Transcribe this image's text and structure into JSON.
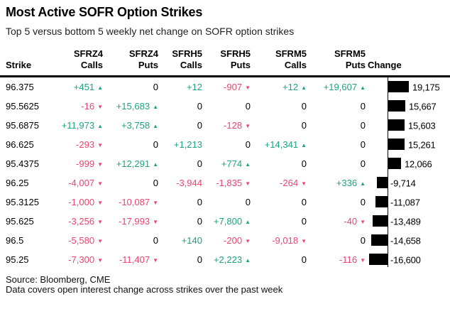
{
  "title": "Most Active SOFR Option Strikes",
  "subtitle": "Top 5 versus bottom 5 weekly net change on SOFR option strikes",
  "colors": {
    "positive": "#1CA57B",
    "negative": "#F0436E",
    "bar": "#000000"
  },
  "header": {
    "columns": [
      {
        "line1": "",
        "line2": "Strike"
      },
      {
        "line1": "SFRZ4",
        "line2": "Calls"
      },
      {
        "line1": "SFRZ4",
        "line2": "Puts"
      },
      {
        "line1": "SFRH5",
        "line2": "Calls"
      },
      {
        "line1": "SFRH5",
        "line2": "Puts"
      },
      {
        "line1": "SFRM5",
        "line2": "Calls"
      },
      {
        "line1": "SFRM5",
        "line2": "Puts"
      },
      {
        "line1": "",
        "line2": "Change"
      }
    ]
  },
  "rows": [
    {
      "strike": "96.375",
      "cells": [
        {
          "t": "+451",
          "a": "up"
        },
        {
          "t": "0"
        },
        {
          "t": "+12"
        },
        {
          "t": "-907",
          "a": "down"
        },
        {
          "t": "+12",
          "a": "up"
        },
        {
          "t": "+19,607",
          "a": "up"
        }
      ],
      "change_label": "19,175",
      "change_value": 19175
    },
    {
      "strike": "95.5625",
      "cells": [
        {
          "t": "-16",
          "a": "down"
        },
        {
          "t": "+15,683",
          "a": "up"
        },
        {
          "t": "0"
        },
        {
          "t": "0"
        },
        {
          "t": "0"
        },
        {
          "t": "0"
        }
      ],
      "change_label": "15,667",
      "change_value": 15667
    },
    {
      "strike": "95.6875",
      "cells": [
        {
          "t": "+11,973",
          "a": "up"
        },
        {
          "t": "+3,758",
          "a": "up"
        },
        {
          "t": "0"
        },
        {
          "t": "-128",
          "a": "down"
        },
        {
          "t": "0"
        },
        {
          "t": "0"
        }
      ],
      "change_label": "15,603",
      "change_value": 15603
    },
    {
      "strike": "96.625",
      "cells": [
        {
          "t": "-293",
          "a": "down"
        },
        {
          "t": "0"
        },
        {
          "t": "+1,213"
        },
        {
          "t": "0"
        },
        {
          "t": "+14,341",
          "a": "up"
        },
        {
          "t": "0"
        }
      ],
      "change_label": "15,261",
      "change_value": 15261
    },
    {
      "strike": "95.4375",
      "cells": [
        {
          "t": "-999",
          "a": "down"
        },
        {
          "t": "+12,291",
          "a": "up"
        },
        {
          "t": "0"
        },
        {
          "t": "+774",
          "a": "up"
        },
        {
          "t": "0"
        },
        {
          "t": "0"
        }
      ],
      "change_label": "12,066",
      "change_value": 12066
    },
    {
      "strike": "96.25",
      "cells": [
        {
          "t": "-4,007",
          "a": "down"
        },
        {
          "t": "0"
        },
        {
          "t": "-3,944"
        },
        {
          "t": "-1,835",
          "a": "down"
        },
        {
          "t": "-264",
          "a": "down"
        },
        {
          "t": "+336",
          "a": "up"
        }
      ],
      "change_label": "-9,714",
      "change_value": -9714
    },
    {
      "strike": "95.3125",
      "cells": [
        {
          "t": "-1,000",
          "a": "down"
        },
        {
          "t": "-10,087",
          "a": "down"
        },
        {
          "t": "0"
        },
        {
          "t": "0"
        },
        {
          "t": "0"
        },
        {
          "t": "0"
        }
      ],
      "change_label": "-11,087",
      "change_value": -11087
    },
    {
      "strike": "95.625",
      "cells": [
        {
          "t": "-3,256",
          "a": "down"
        },
        {
          "t": "-17,993",
          "a": "down"
        },
        {
          "t": "0"
        },
        {
          "t": "+7,800",
          "a": "up"
        },
        {
          "t": "0"
        },
        {
          "t": "-40",
          "a": "down"
        }
      ],
      "change_label": "-13,489",
      "change_value": -13489
    },
    {
      "strike": "96.5",
      "cells": [
        {
          "t": "-5,580",
          "a": "down"
        },
        {
          "t": "0"
        },
        {
          "t": "+140"
        },
        {
          "t": "-200",
          "a": "down"
        },
        {
          "t": "-9,018",
          "a": "down"
        },
        {
          "t": "0"
        }
      ],
      "change_label": "-14,658",
      "change_value": -14658
    },
    {
      "strike": "95.25",
      "cells": [
        {
          "t": "-7,300",
          "a": "down"
        },
        {
          "t": "-11,407",
          "a": "down"
        },
        {
          "t": "0"
        },
        {
          "t": "+2,223",
          "a": "up"
        },
        {
          "t": "0"
        },
        {
          "t": "-116",
          "a": "down"
        }
      ],
      "change_label": "-16,600",
      "change_value": -16600
    }
  ],
  "footer": {
    "line1": "Source: Bloomberg, CME",
    "line2": "Data covers open interest change across strikes over the past week"
  },
  "chart_data": {
    "type": "table",
    "title": "Most Active SOFR Option Strikes",
    "subtitle": "Top 5 versus bottom 5 weekly net change on SOFR option strikes",
    "columns": [
      "Strike",
      "SFRZ4 Calls",
      "SFRZ4 Puts",
      "SFRH5 Calls",
      "SFRH5 Puts",
      "SFRM5 Calls",
      "SFRM5 Puts",
      "Change"
    ],
    "rows": [
      [
        96.375,
        451,
        0,
        12,
        -907,
        12,
        19607,
        19175
      ],
      [
        95.5625,
        -16,
        15683,
        0,
        0,
        0,
        0,
        15667
      ],
      [
        95.6875,
        11973,
        3758,
        0,
        -128,
        0,
        0,
        15603
      ],
      [
        96.625,
        -293,
        0,
        1213,
        0,
        14341,
        0,
        15261
      ],
      [
        95.4375,
        -999,
        12291,
        0,
        774,
        0,
        0,
        12066
      ],
      [
        96.25,
        -4007,
        0,
        -3944,
        -1835,
        -264,
        336,
        -9714
      ],
      [
        95.3125,
        -1000,
        -10087,
        0,
        0,
        0,
        0,
        -11087
      ],
      [
        95.625,
        -3256,
        -17993,
        0,
        7800,
        0,
        -40,
        -13489
      ],
      [
        96.5,
        -5580,
        0,
        140,
        -200,
        -9018,
        0,
        -14658
      ],
      [
        95.25,
        -7300,
        -11407,
        0,
        2223,
        0,
        -116,
        -16600
      ]
    ],
    "bar_series": {
      "name": "Change",
      "color": "#000000",
      "values": [
        19175,
        15667,
        15603,
        15261,
        12066,
        -9714,
        -11087,
        -13489,
        -14658,
        -16600
      ]
    },
    "value_colors": {
      "positive": "#1CA57B",
      "negative": "#F0436E"
    },
    "legend": "none",
    "grid": "off"
  }
}
